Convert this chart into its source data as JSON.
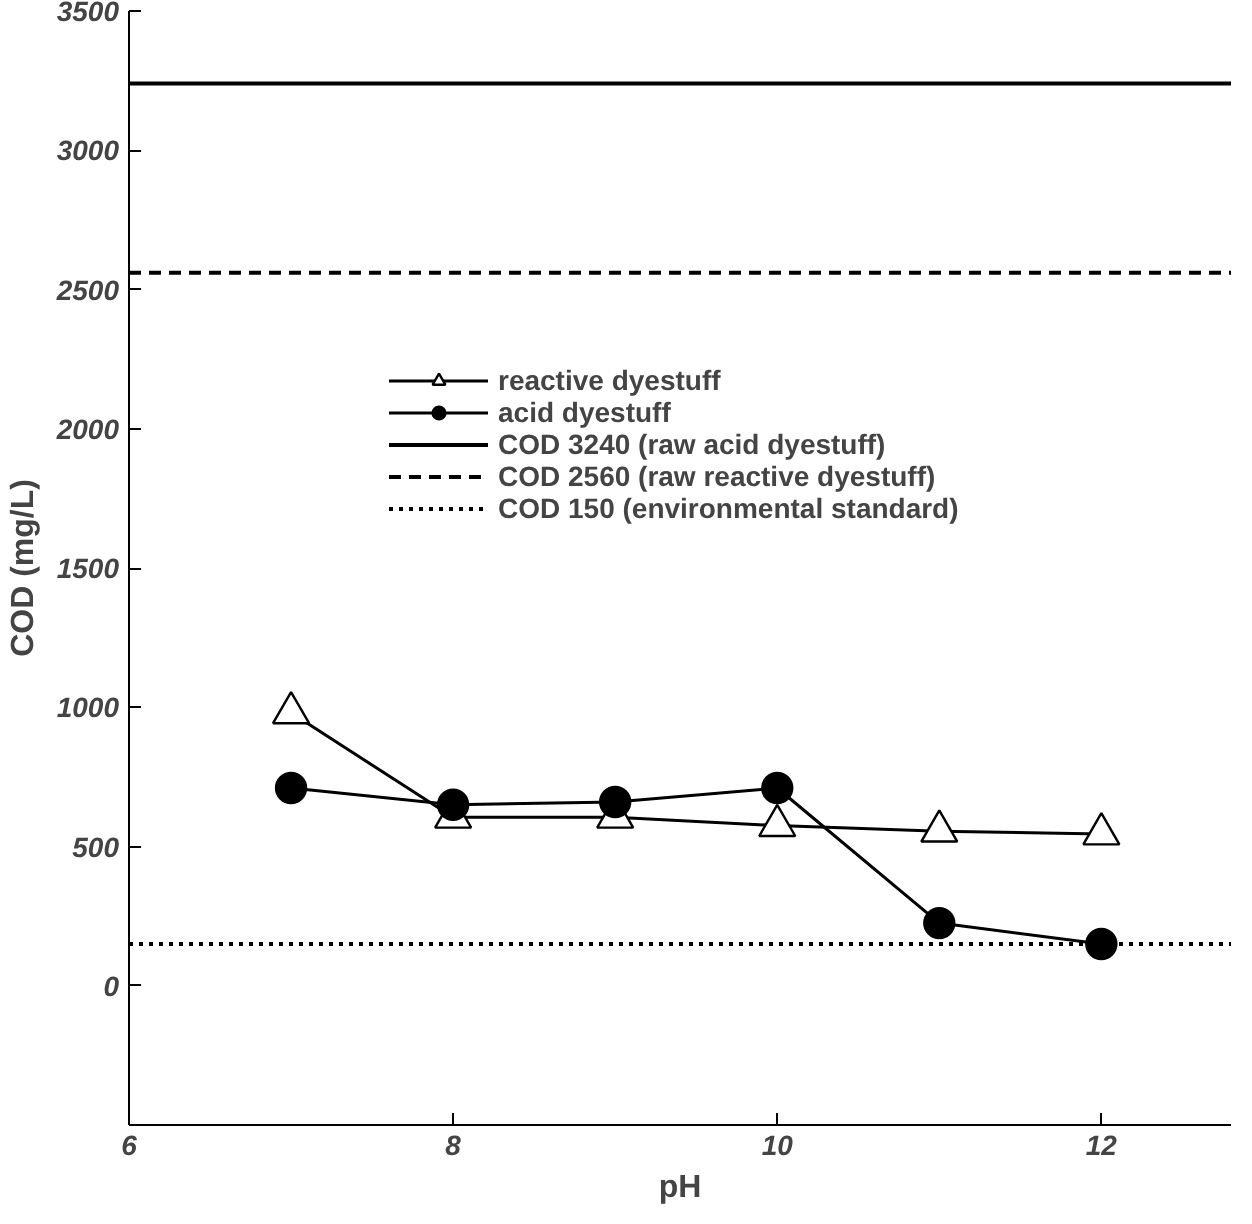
{
  "chart_data": {
    "type": "line",
    "xlabel": "pH",
    "ylabel": "COD (mg/L)",
    "x": [
      7,
      8,
      9,
      10,
      11,
      12
    ],
    "series": [
      {
        "name": "reactive dyestuff",
        "color": "#000000",
        "marker": "triangle",
        "values": [
          980,
          605,
          605,
          575,
          555,
          545
        ]
      },
      {
        "name": "acid dyestuff",
        "color": "#000000",
        "marker": "circle",
        "values": [
          710,
          650,
          660,
          710,
          225,
          150
        ]
      }
    ],
    "ref_lines": [
      {
        "axis": "y",
        "value": 3240,
        "label": "COD 3240 (raw acid dyestuff)",
        "line_style": "solid",
        "color": "#000000"
      },
      {
        "axis": "y",
        "value": 2560,
        "label": "COD 2560 (raw reactive dyestuff)",
        "line_style": "dashed",
        "color": "#000000"
      },
      {
        "axis": "y",
        "value": 150,
        "label": "COD 150 (environmental standard)",
        "line_style": "dotted",
        "color": "#000000"
      }
    ],
    "xlim": [
      6,
      12.8
    ],
    "ylim": [
      -500,
      3500
    ],
    "xticks": [
      6,
      8,
      10,
      12
    ],
    "yticks": [
      0,
      500,
      1000,
      1500,
      2000,
      2500,
      3000,
      3500
    ],
    "grid": false,
    "legend": "top right",
    "line_style": "solid"
  }
}
